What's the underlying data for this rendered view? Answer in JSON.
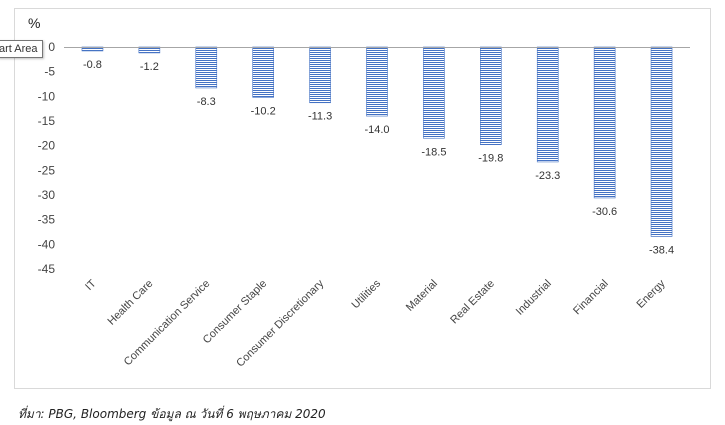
{
  "tooltip": "art Area",
  "source_note": "ที่มา: PBG, Bloomberg ข้อมูล ณ วันที่ 6 พฤษภาคม 2020",
  "chart_data": {
    "type": "bar",
    "ylabel": "%",
    "ylim": [
      -45,
      0
    ],
    "yticks": [
      0,
      -5,
      -10,
      -15,
      -20,
      -25,
      -30,
      -35,
      -40,
      -45
    ],
    "ytick_labels": [
      "0",
      "-5",
      "-10",
      "-15",
      "-20",
      "-25",
      "-30",
      "-35",
      "-40",
      "-45"
    ],
    "categories": [
      "IT",
      "Health Care",
      "Communication Service",
      "Consumer Staple",
      "Consumer Discretionary",
      "Utilities",
      "Material",
      "Real Estate",
      "Industrial",
      "Financial",
      "Energy"
    ],
    "values": [
      -0.8,
      -1.2,
      -8.3,
      -10.2,
      -11.3,
      -14.0,
      -18.5,
      -19.8,
      -23.3,
      -30.6,
      -38.4
    ],
    "data_labels": [
      "-0.8",
      "-1.2",
      "-8.3",
      "-10.2",
      "-11.3",
      "-14.0",
      "-18.5",
      "-19.8",
      "-23.3",
      "-30.6",
      "-38.4"
    ],
    "bar_color": "#4472c4",
    "grid": false
  }
}
